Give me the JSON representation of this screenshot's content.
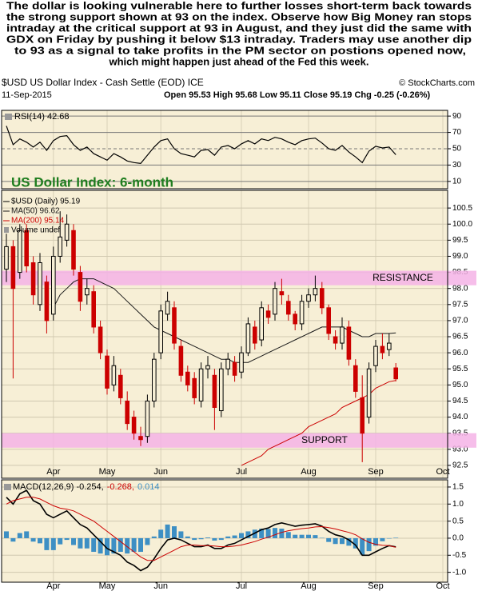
{
  "annotation": [
    "The dollar is looking vulnerable here to further losses short-term back towards",
    "the strong support shown  at 93 on the index. Observe how Big Money ran stops",
    "intraday at the critical support at 93 in August, and they just did the same with",
    "GDX on Friday by pushing it below $13 intraday. Traders may use another dip",
    "to 93 as a signal to take profits in the PM sector on postions opened now,",
    "which might happen just ahead of the Fed this week."
  ],
  "header": {
    "symbol": "$USD US Dollar Index - Cash Settle (EOD) ICE",
    "source": "© StockCharts.com",
    "date": "11-Sep-2015",
    "quote": "Open 95.53  High 95.68  Low 95.11  Close 95.19  Chg -0.25 (-0.26%)"
  },
  "chart_data": [
    {
      "type": "line",
      "label": "RSI(14) 42.68",
      "color": "#000000",
      "values": [
        78,
        55,
        62,
        58,
        52,
        58,
        48,
        60,
        65,
        66,
        55,
        48,
        52,
        44,
        40,
        36,
        44,
        40,
        35,
        33,
        32,
        42,
        52,
        60,
        62,
        50,
        44,
        42,
        40,
        48,
        49,
        42,
        52,
        54,
        50,
        56,
        60,
        56,
        62,
        60,
        64,
        62,
        58,
        55,
        60,
        62,
        63,
        57,
        50,
        48,
        54,
        46,
        40,
        33,
        47,
        53,
        51,
        52,
        42.68,
        null,
        null,
        null,
        null,
        null,
        null,
        null
      ],
      "ylim": [
        1,
        97
      ],
      "yticks": [
        10,
        30,
        50,
        70,
        90
      ],
      "grid": true
    },
    {
      "type": "candlestick",
      "title": "US Dollar Index: 6-month",
      "name": "$USD (Daily) 95.19",
      "volume_label": "Volume undef",
      "up_color": "#000000",
      "down_color": "#cc0000",
      "categories": [
        null,
        null,
        null,
        null,
        null,
        null,
        null,
        "Apr",
        null,
        null,
        null,
        null,
        null,
        null,
        null,
        "May",
        null,
        null,
        null,
        null,
        null,
        null,
        null,
        "Jun",
        null,
        null,
        null,
        null,
        null,
        null,
        null,
        null,
        null,
        null,
        null,
        "Jul",
        null,
        null,
        null,
        null,
        null,
        null,
        null,
        null,
        null,
        "Aug",
        null,
        null,
        null,
        null,
        null,
        null,
        null,
        null,
        null,
        "Sep",
        null,
        null,
        null,
        null,
        null,
        null,
        null,
        null,
        null,
        "Oct"
      ],
      "open": [
        98.6,
        99.3,
        98.5,
        99.8,
        98.8,
        97.5,
        98.2,
        97.2,
        99.0,
        99.5,
        99.8,
        98.5,
        97.8,
        97.9,
        96.8,
        95.9,
        95.0,
        95.3,
        94.5,
        94.0,
        93.4,
        93.4,
        94.5,
        96.0,
        97.2,
        97.4,
        96.2,
        95.4,
        95.2,
        94.5,
        95.5,
        95.3,
        94.2,
        95.5,
        95.7,
        95.4,
        96.0,
        96.8,
        96.4,
        97.3,
        97.2,
        97.9,
        97.6,
        97.2,
        96.9,
        97.6,
        97.8,
        98.0,
        97.4,
        96.5,
        96.3,
        96.8,
        95.6,
        94.6,
        94.0,
        95.6,
        96.2,
        96.1,
        95.53,
        null,
        null,
        null,
        null,
        null,
        null,
        null
      ],
      "high": [
        99.7,
        99.5,
        100.0,
        100.0,
        99.0,
        99.1,
        98.4,
        99.3,
        100.4,
        100.3,
        100.0,
        98.7,
        98.3,
        98.1,
        97.0,
        96.1,
        95.9,
        95.5,
        94.8,
        94.2,
        93.7,
        94.7,
        96.0,
        97.5,
        97.9,
        97.6,
        96.4,
        95.6,
        95.4,
        95.7,
        95.9,
        95.5,
        95.7,
        96.0,
        95.9,
        96.2,
        97.1,
        97.0,
        97.6,
        97.5,
        98.2,
        98.3,
        97.8,
        97.3,
        97.8,
        98.0,
        98.4,
        98.2,
        97.5,
        96.7,
        97.1,
        97.0,
        95.8,
        95.3,
        95.7,
        96.4,
        96.6,
        96.6,
        95.68,
        null,
        null,
        null,
        null,
        null,
        null,
        null
      ],
      "low": [
        98.2,
        95.2,
        98.3,
        98.5,
        97.5,
        97.3,
        96.6,
        97.0,
        98.8,
        99.3,
        98.4,
        97.3,
        97.5,
        96.6,
        95.8,
        94.7,
        94.8,
        94.4,
        93.6,
        93.3,
        93.1,
        93.2,
        94.3,
        95.8,
        97.0,
        96.1,
        95.1,
        94.8,
        94.4,
        94.3,
        95.2,
        93.6,
        94.0,
        95.3,
        95.1,
        95.2,
        95.9,
        96.1,
        96.2,
        96.9,
        97.0,
        97.5,
        97.0,
        96.7,
        96.7,
        97.4,
        97.6,
        97.2,
        96.4,
        96.1,
        96.1,
        95.6,
        94.6,
        92.6,
        93.8,
        95.4,
        95.8,
        95.9,
        95.11,
        null,
        null,
        null,
        null,
        null,
        null,
        null
      ],
      "close": [
        99.3,
        98.0,
        99.8,
        98.7,
        97.8,
        98.8,
        97.0,
        99.0,
        99.6,
        100.0,
        98.6,
        97.6,
        98.0,
        96.8,
        96.0,
        94.9,
        95.6,
        94.6,
        93.8,
        93.5,
        93.3,
        94.5,
        95.8,
        97.3,
        97.6,
        96.3,
        95.3,
        95.0,
        94.6,
        95.5,
        95.6,
        94.3,
        95.5,
        95.8,
        95.3,
        96.0,
        96.9,
        96.3,
        97.4,
        97.1,
        98.0,
        97.8,
        97.2,
        96.9,
        97.6,
        97.8,
        98.0,
        97.4,
        96.6,
        96.3,
        96.8,
        95.8,
        94.8,
        93.5,
        95.5,
        96.2,
        96.0,
        96.3,
        95.19,
        null,
        null,
        null,
        null,
        null,
        null,
        null
      ],
      "series": [
        {
          "name": "MA(50) 96.62",
          "color": "#1a1a1a",
          "values": [
            null,
            null,
            null,
            null,
            null,
            null,
            null,
            97.4,
            97.8,
            98.0,
            98.2,
            98.3,
            98.3,
            98.3,
            98.2,
            98.1,
            98.0,
            97.8,
            97.6,
            97.4,
            97.2,
            97.0,
            96.8,
            96.7,
            96.6,
            96.5,
            96.4,
            96.3,
            96.2,
            96.1,
            96.0,
            95.9,
            95.8,
            95.8,
            95.7,
            95.7,
            95.7,
            95.8,
            95.9,
            96.0,
            96.1,
            96.2,
            96.3,
            96.4,
            96.5,
            96.6,
            96.7,
            96.8,
            96.8,
            96.8,
            96.8,
            96.7,
            96.6,
            96.5,
            96.5,
            96.6,
            96.6,
            96.6,
            96.62,
            null,
            null,
            null,
            null,
            null,
            null,
            null
          ]
        },
        {
          "name": "MA(200) 95.14",
          "color": "#cc0000",
          "values": [
            null,
            null,
            null,
            null,
            null,
            null,
            null,
            null,
            null,
            null,
            null,
            null,
            null,
            null,
            null,
            null,
            null,
            null,
            null,
            null,
            null,
            null,
            null,
            null,
            null,
            null,
            null,
            null,
            null,
            null,
            null,
            null,
            null,
            null,
            null,
            92.5,
            92.6,
            92.7,
            92.8,
            93.0,
            93.1,
            93.2,
            93.3,
            93.4,
            93.5,
            93.7,
            93.8,
            93.9,
            94.0,
            94.1,
            94.3,
            94.4,
            94.5,
            94.6,
            94.7,
            94.9,
            95.0,
            95.1,
            95.14,
            null,
            null,
            null,
            null,
            null,
            null,
            null
          ]
        }
      ],
      "bands": [
        {
          "label": "RESISTANCE",
          "range": [
            98.1,
            98.55
          ],
          "color": "#f4b3e6"
        },
        {
          "label": "SUPPORT",
          "range": [
            93.05,
            93.5
          ],
          "color": "#f4b3e6"
        }
      ],
      "ylim": [
        92.1,
        101.05
      ],
      "yticks": [
        92.5,
        {
          "value": 93,
          "label": "93.0"
        },
        93.5,
        {
          "value": 94,
          "label": "94.0"
        },
        94.5,
        {
          "value": 95,
          "label": "95.0"
        },
        95.5,
        {
          "value": 96,
          "label": "96.0"
        },
        96.5,
        {
          "value": 97,
          "label": "97.0"
        },
        97.5,
        {
          "value": 98,
          "label": "98.0"
        },
        98.5,
        {
          "value": 99,
          "label": "99.0"
        },
        99.5,
        {
          "value": 100,
          "label": "100.0"
        },
        100.5
      ],
      "grid": true
    },
    {
      "type": "macd",
      "label": [
        "MACD(12,26,9) -0.254,",
        "-0.268,",
        "0.014"
      ],
      "series": [
        {
          "color": "#000000",
          "values": [
            1.2,
            1.0,
            1.3,
            1.4,
            1.1,
            1.0,
            0.7,
            0.6,
            0.7,
            0.8,
            0.6,
            0.4,
            0.3,
            0.1,
            -0.1,
            -0.3,
            -0.4,
            -0.5,
            -0.7,
            -0.8,
            -0.95,
            -0.85,
            -0.6,
            -0.3,
            -0.05,
            0.0,
            -0.05,
            -0.15,
            -0.25,
            -0.25,
            -0.2,
            -0.3,
            -0.3,
            -0.2,
            -0.15,
            -0.05,
            0.05,
            0.15,
            0.25,
            0.3,
            0.4,
            0.45,
            0.4,
            0.35,
            0.38,
            0.4,
            0.42,
            0.35,
            0.2,
            0.1,
            0.05,
            -0.05,
            -0.2,
            -0.5,
            -0.5,
            -0.4,
            -0.3,
            -0.22,
            -0.254,
            null,
            null,
            null,
            null,
            null,
            null,
            null
          ]
        },
        {
          "color": "#cc0000",
          "values": [
            1.0,
            1.1,
            1.15,
            1.2,
            1.2,
            1.15,
            1.05,
            0.95,
            0.88,
            0.85,
            0.8,
            0.7,
            0.6,
            0.5,
            0.35,
            0.2,
            0.05,
            -0.1,
            -0.25,
            -0.4,
            -0.55,
            -0.65,
            -0.65,
            -0.55,
            -0.45,
            -0.35,
            -0.25,
            -0.2,
            -0.2,
            -0.22,
            -0.22,
            -0.23,
            -0.25,
            -0.25,
            -0.23,
            -0.2,
            -0.15,
            -0.1,
            -0.03,
            0.03,
            0.1,
            0.17,
            0.22,
            0.25,
            0.28,
            0.3,
            0.33,
            0.34,
            0.31,
            0.27,
            0.22,
            0.17,
            0.1,
            -0.02,
            -0.12,
            -0.18,
            -0.21,
            -0.22,
            -0.268,
            null,
            null,
            null,
            null,
            null,
            null,
            null
          ]
        }
      ],
      "histogram": {
        "color": "#3d8fc4",
        "values": [
          0.2,
          -0.1,
          0.15,
          0.2,
          -0.1,
          -0.15,
          -0.35,
          -0.35,
          -0.18,
          -0.05,
          -0.2,
          -0.3,
          -0.3,
          -0.4,
          -0.45,
          -0.5,
          -0.45,
          -0.4,
          -0.45,
          -0.4,
          -0.4,
          -0.2,
          0.05,
          0.25,
          0.4,
          0.35,
          0.2,
          0.05,
          -0.05,
          -0.03,
          0.02,
          -0.07,
          -0.05,
          0.05,
          0.08,
          0.15,
          0.2,
          0.25,
          0.28,
          0.27,
          0.3,
          0.28,
          0.18,
          0.1,
          0.1,
          0.1,
          0.09,
          0.01,
          -0.11,
          -0.17,
          -0.17,
          -0.22,
          -0.3,
          -0.48,
          -0.38,
          -0.22,
          -0.09,
          0.0,
          0.014,
          null,
          null,
          null,
          null,
          null,
          null,
          null
        ]
      },
      "ylim": [
        -1.29,
        1.71
      ],
      "yticks": [
        1.5,
        {
          "value": 1,
          "label": "1.0"
        },
        0.5,
        {
          "value": 0,
          "label": "0.0"
        },
        -0.5,
        {
          "value": -1,
          "label": "-1.0"
        }
      ],
      "grid": true
    }
  ]
}
